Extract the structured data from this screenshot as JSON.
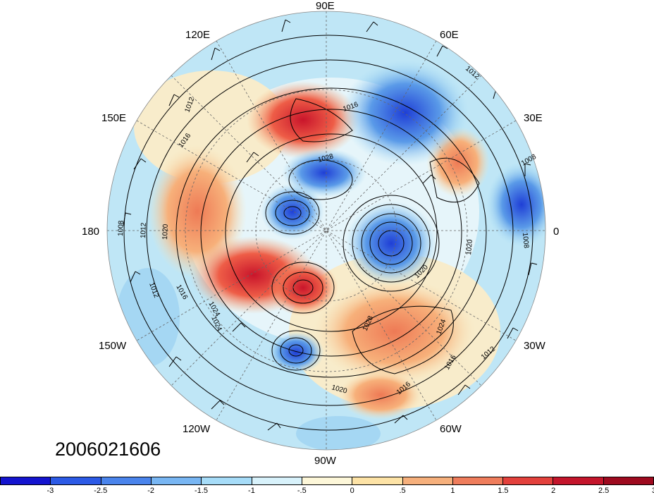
{
  "map": {
    "timestamp": "2006021606",
    "projection": "north-polar-stereographic",
    "longitude_labels": [
      {
        "key": "n90e",
        "text": "90E"
      },
      {
        "key": "n60e",
        "text": "60E"
      },
      {
        "key": "n30e",
        "text": "30E"
      },
      {
        "key": "n0",
        "text": "0"
      },
      {
        "key": "n30w",
        "text": "30W"
      },
      {
        "key": "n60w",
        "text": "60W"
      },
      {
        "key": "n90w",
        "text": "90W"
      },
      {
        "key": "n120w",
        "text": "120W"
      },
      {
        "key": "n150w",
        "text": "150W"
      },
      {
        "key": "n180",
        "text": "180"
      },
      {
        "key": "n150e",
        "text": "150E"
      },
      {
        "key": "n120e",
        "text": "120E"
      }
    ],
    "contour_labels": [
      "1012",
      "1016",
      "1008",
      "1012",
      "1008",
      "1020",
      "1024",
      "1012",
      "1016",
      "1016",
      "1020",
      "1028",
      "1024",
      "1020",
      "1012",
      "1008",
      "1012",
      "1016",
      "1020",
      "1028",
      "1024",
      "1016"
    ],
    "colors": {
      "strong_negative": "#1f3fd6",
      "negative": "#5a9ae8",
      "weak_negative": "#a6dcf4",
      "near_zero": "#f8f2cf",
      "weak_positive": "#f7b07a",
      "positive": "#ee5d47",
      "strong_positive": "#c9152b"
    }
  },
  "colorbar": {
    "colors": [
      "#1414cf",
      "#2c5ae6",
      "#4a84ec",
      "#78b6f3",
      "#a6dcf8",
      "#d8f2fb",
      "#fdf7d9",
      "#fde3a6",
      "#f6b07c",
      "#ef7d5c",
      "#e3413c",
      "#c4152b",
      "#9e0a1f"
    ],
    "labels": [
      "-3",
      "-2.5",
      "-2",
      "-1.5",
      "-1",
      "-.5",
      "0",
      ".5",
      "1",
      "1.5",
      "2",
      "2.5",
      "3"
    ]
  }
}
